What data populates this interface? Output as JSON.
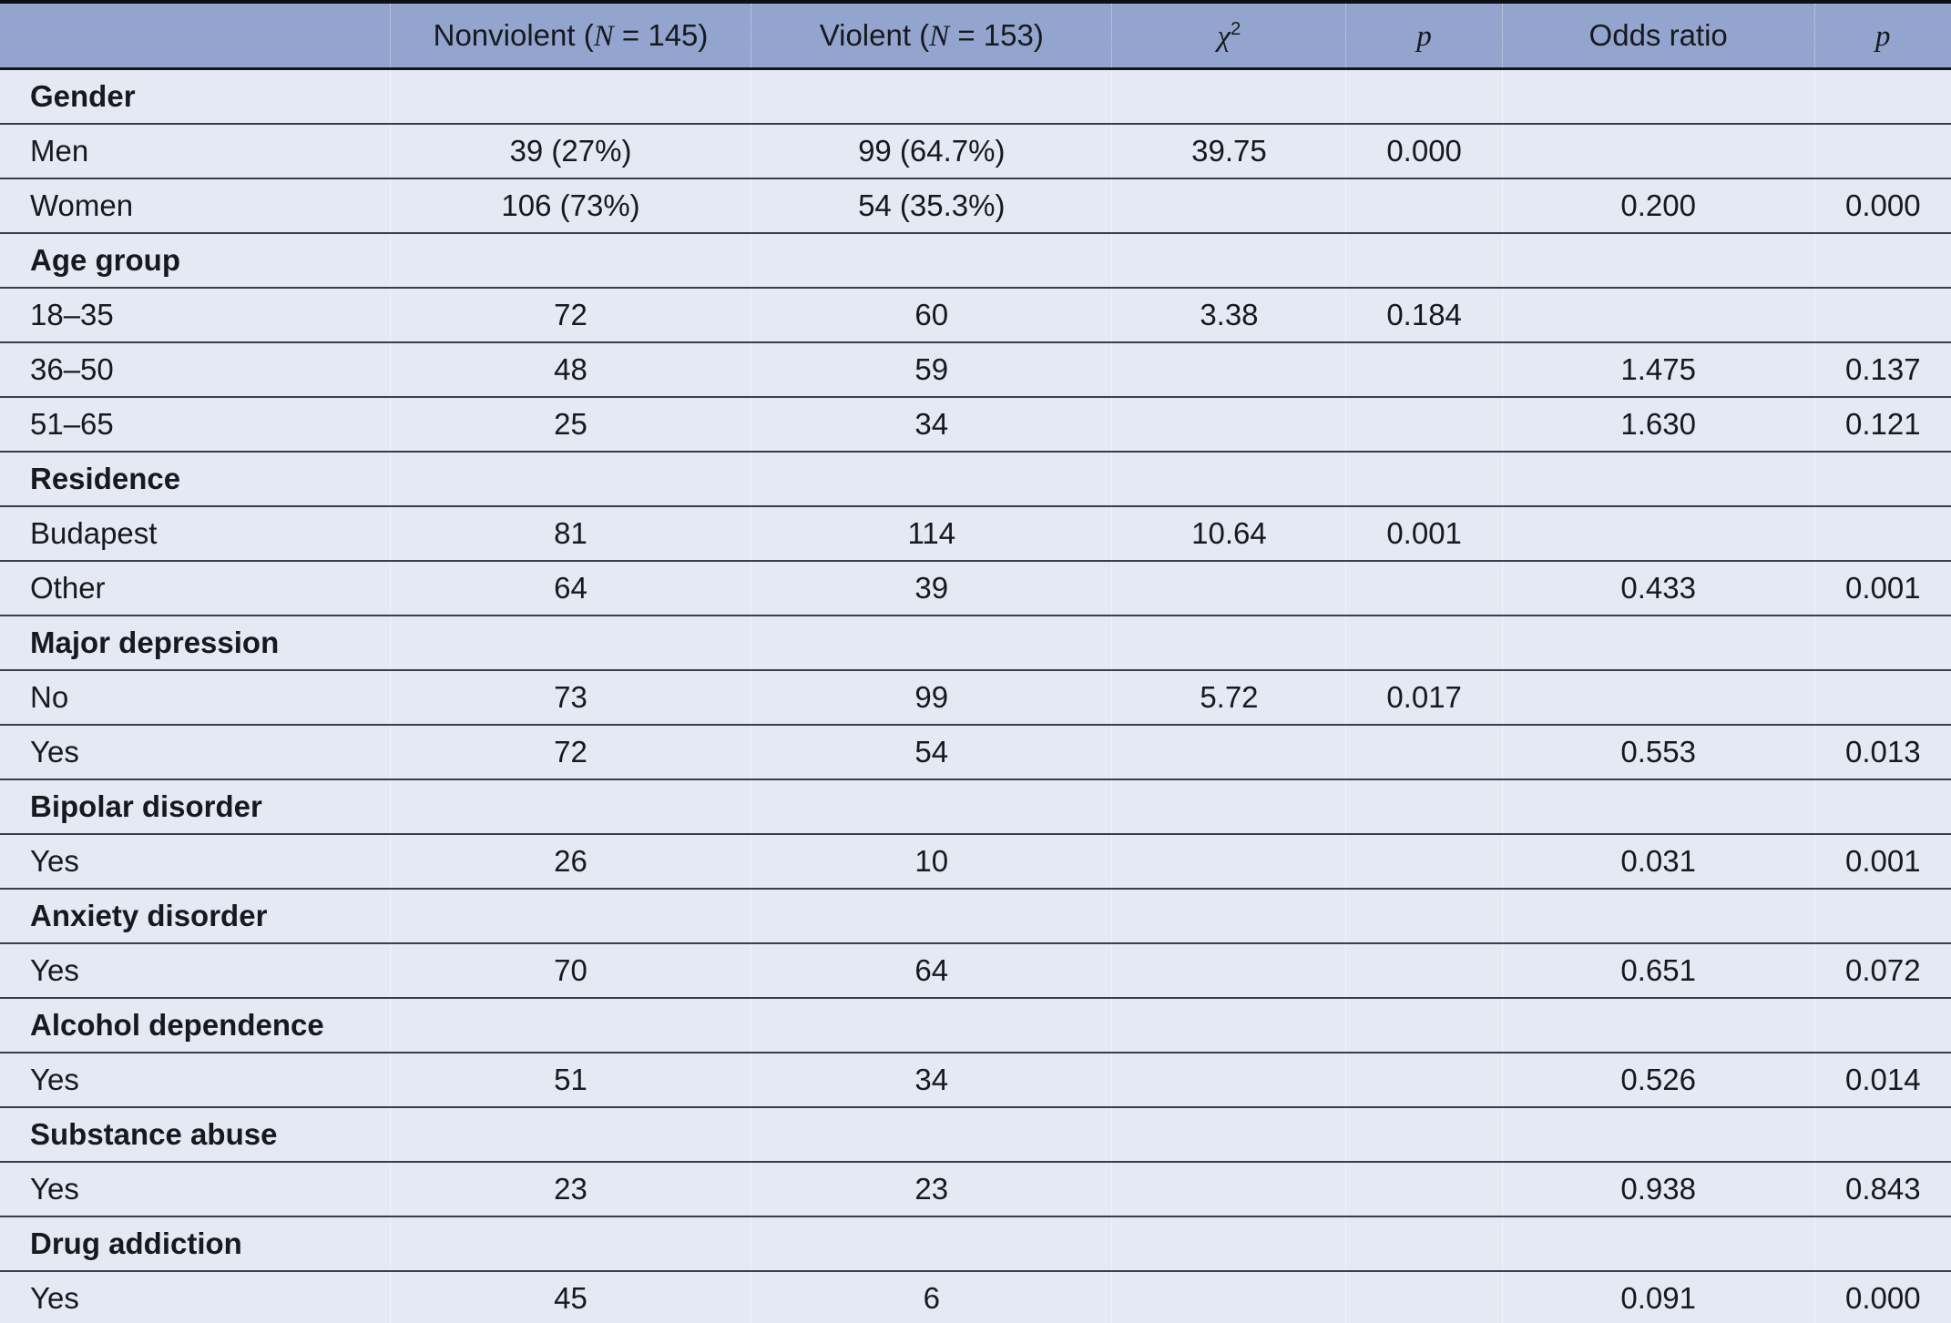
{
  "colors": {
    "header_background": "#93a5ce",
    "body_background": "#e5e9f3",
    "row_separator": "#383e4b",
    "heavy_border": "#0e1013",
    "text": "#17191e"
  },
  "table": {
    "columns": [
      {
        "name": "column-header-category",
        "parts": []
      },
      {
        "name": "column-header-nonviolent",
        "parts": [
          {
            "t": "Nonviolent ("
          },
          {
            "t": "N",
            "style": "math"
          },
          {
            "t": " = 145)"
          }
        ]
      },
      {
        "name": "column-header-violent",
        "parts": [
          {
            "t": "Violent ("
          },
          {
            "t": "N",
            "style": "math"
          },
          {
            "t": " = 153)"
          }
        ]
      },
      {
        "name": "column-header-chi-square",
        "parts": [
          {
            "t": "χ",
            "style": "math"
          },
          {
            "t": "2",
            "style": "sup"
          }
        ]
      },
      {
        "name": "column-header-p-chi",
        "parts": [
          {
            "t": "p",
            "style": "math"
          }
        ]
      },
      {
        "name": "column-header-odds-ratio",
        "parts": [
          {
            "t": "Odds ratio"
          }
        ]
      },
      {
        "name": "column-header-p-odds",
        "parts": [
          {
            "t": "p",
            "style": "math"
          }
        ]
      }
    ],
    "rows": [
      {
        "type": "section",
        "label": "Gender",
        "values": [
          "",
          "",
          "",
          "",
          "",
          ""
        ]
      },
      {
        "type": "data",
        "label": "Men",
        "values": [
          "39 (27%)",
          "99 (64.7%)",
          "39.75",
          "0.000",
          "",
          ""
        ]
      },
      {
        "type": "data",
        "label": "Women",
        "values": [
          "106 (73%)",
          "54 (35.3%)",
          "",
          "",
          "0.200",
          "0.000"
        ]
      },
      {
        "type": "section",
        "label": "Age group",
        "values": [
          "",
          "",
          "",
          "",
          "",
          ""
        ]
      },
      {
        "type": "data",
        "label": "18–35",
        "values": [
          "72",
          "60",
          "3.38",
          "0.184",
          "",
          ""
        ]
      },
      {
        "type": "data",
        "label": "36–50",
        "values": [
          "48",
          "59",
          "",
          "",
          "1.475",
          "0.137"
        ]
      },
      {
        "type": "data",
        "label": "51–65",
        "values": [
          "25",
          "34",
          "",
          "",
          "1.630",
          "0.121"
        ]
      },
      {
        "type": "section",
        "label": "Residence",
        "values": [
          "",
          "",
          "",
          "",
          "",
          ""
        ]
      },
      {
        "type": "data",
        "label": "Budapest",
        "values": [
          "81",
          "114",
          "10.64",
          "0.001",
          "",
          ""
        ]
      },
      {
        "type": "data",
        "label": "Other",
        "values": [
          "64",
          "39",
          "",
          "",
          "0.433",
          "0.001"
        ]
      },
      {
        "type": "section",
        "label": "Major depression",
        "values": [
          "",
          "",
          "",
          "",
          "",
          ""
        ]
      },
      {
        "type": "data",
        "label": "No",
        "values": [
          "73",
          "99",
          "5.72",
          "0.017",
          "",
          ""
        ]
      },
      {
        "type": "data",
        "label": "Yes",
        "values": [
          "72",
          "54",
          "",
          "",
          "0.553",
          "0.013"
        ]
      },
      {
        "type": "section",
        "label": "Bipolar disorder",
        "values": [
          "",
          "",
          "",
          "",
          "",
          ""
        ]
      },
      {
        "type": "data",
        "label": "Yes",
        "values": [
          "26",
          "10",
          "",
          "",
          "0.031",
          "0.001"
        ]
      },
      {
        "type": "section",
        "label": "Anxiety disorder",
        "values": [
          "",
          "",
          "",
          "",
          "",
          ""
        ]
      },
      {
        "type": "data",
        "label": "Yes",
        "values": [
          "70",
          "64",
          "",
          "",
          "0.651",
          "0.072"
        ]
      },
      {
        "type": "section",
        "label": "Alcohol dependence",
        "values": [
          "",
          "",
          "",
          "",
          "",
          ""
        ]
      },
      {
        "type": "data",
        "label": "Yes",
        "values": [
          "51",
          "34",
          "",
          "",
          "0.526",
          "0.014"
        ]
      },
      {
        "type": "section",
        "label": "Substance abuse",
        "values": [
          "",
          "",
          "",
          "",
          "",
          ""
        ]
      },
      {
        "type": "data",
        "label": "Yes",
        "values": [
          "23",
          "23",
          "",
          "",
          "0.938",
          "0.843"
        ]
      },
      {
        "type": "section",
        "label": "Drug addiction",
        "values": [
          "",
          "",
          "",
          "",
          "",
          ""
        ]
      },
      {
        "type": "data",
        "label": "Yes",
        "values": [
          "45",
          "6",
          "",
          "",
          "0.091",
          "0.000"
        ]
      }
    ]
  }
}
